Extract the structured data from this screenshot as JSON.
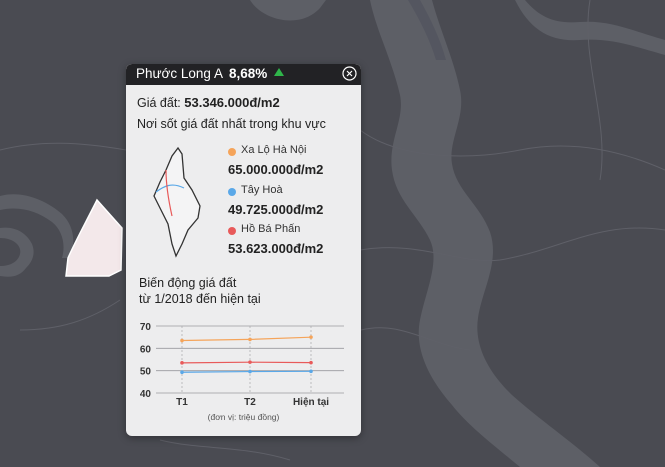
{
  "popup": {
    "name": "Phước Long A",
    "change_pct": "8,68%",
    "trend_color": "#2fb54a",
    "price_label": "Giá đất:",
    "price_value": "53.346.000đ/m2",
    "subtitle": "Nơi sốt giá đất nhất trong khu vực",
    "legend": [
      {
        "name": "Xa Lộ Hà Nội",
        "value": "65.000.000đ/m2",
        "color": "#f5a45a"
      },
      {
        "name": "Tây Hoà",
        "value": "49.725.000đ/m2",
        "color": "#5aa8e8"
      },
      {
        "name": "Hồ Bá Phấn",
        "value": "53.623.000đ/m2",
        "color": "#e85a5a"
      }
    ],
    "chart_title_line1": "Biến động giá đất",
    "chart_title_line2": "từ 1/2018 đến hiện tại",
    "unit_note": "(đơn vị: triệu đồng)"
  },
  "icons": {
    "close": "close-circle-icon",
    "trend": "triangle-up-icon"
  },
  "chart_data": {
    "type": "line",
    "categories": [
      "T1",
      "T2",
      "Hiện tại"
    ],
    "series": [
      {
        "name": "Xa Lộ Hà Nội",
        "values": [
          63.5,
          64,
          65
        ],
        "color": "#f5a45a"
      },
      {
        "name": "Hồ Bá Phấn",
        "values": [
          53.5,
          53.8,
          53.6
        ],
        "color": "#e85a5a"
      },
      {
        "name": "Tây Hoà",
        "values": [
          49.3,
          49.6,
          49.7
        ],
        "color": "#5aa8e8"
      }
    ],
    "yticks": [
      40,
      50,
      60,
      70
    ],
    "ylim": [
      40,
      70
    ],
    "grid": true
  }
}
